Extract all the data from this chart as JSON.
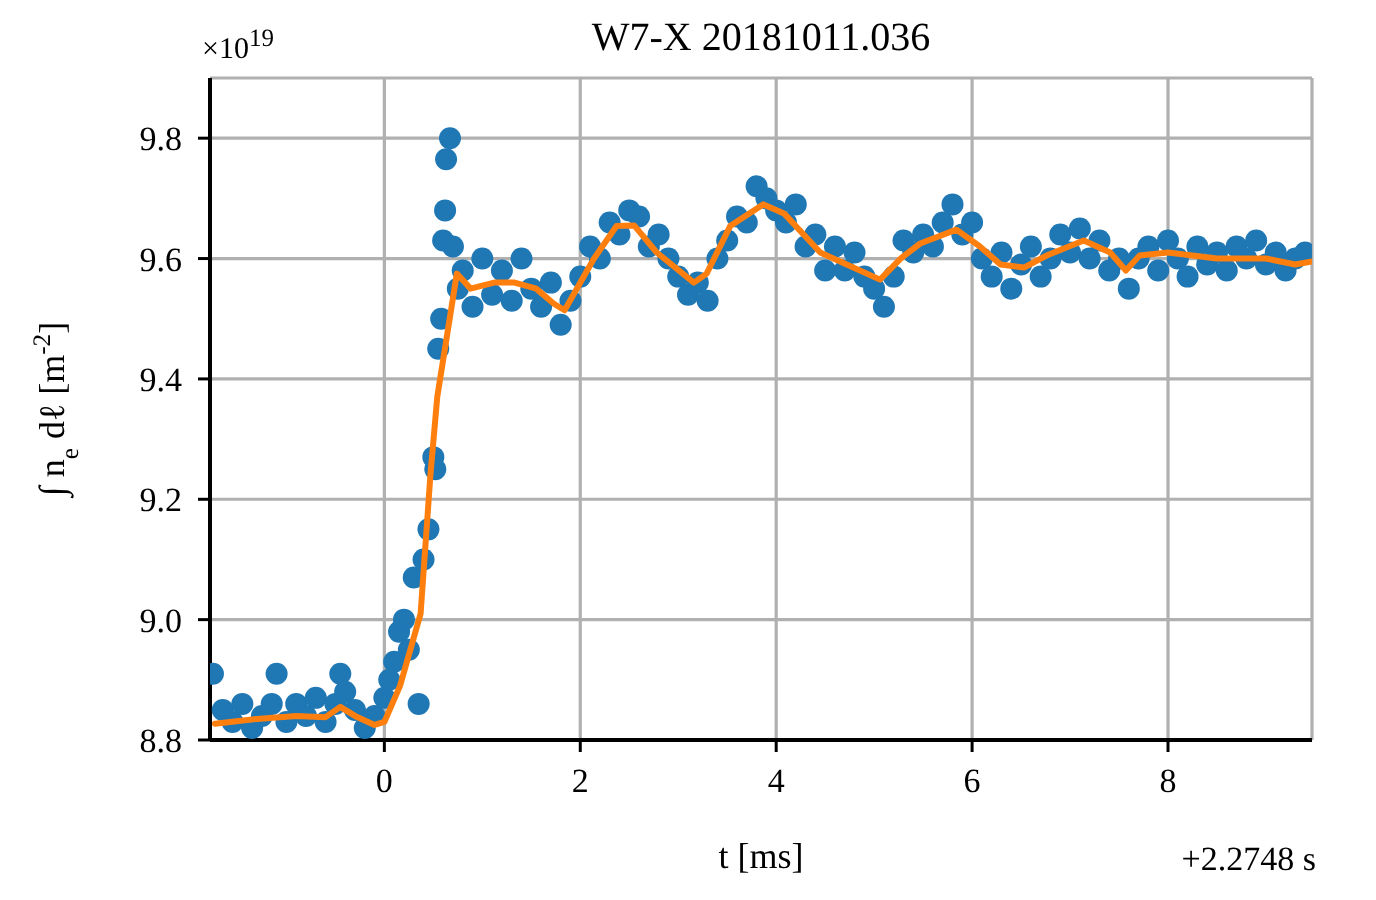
{
  "chart_data": {
    "type": "scatter",
    "title": "W7-X 20181011.036",
    "xlabel": "t [ms]",
    "ylabel": "∫ n$_{e}$ dℓ [m$^{-2}$]",
    "annotations": [
      "×10$^{19}$",
      "+2.2748 s"
    ],
    "xlim": [
      -1.78,
      9.47
    ],
    "xticks": [
      0,
      2,
      4,
      6,
      8
    ],
    "ylim": [
      8.8,
      9.9
    ],
    "yticks": [
      8.8,
      {
        "value": 9,
        "label": "9.0"
      },
      9.2,
      9.4,
      9.6,
      9.8
    ],
    "grid": true,
    "marker": "circle",
    "series": [
      {
        "color": "#1f77b4",
        "x": [
          -1.75,
          -1.65,
          -1.55,
          -1.45,
          -1.35,
          -1.25,
          -1.15,
          -1.1,
          -1.0,
          -0.9,
          -0.8,
          -0.7,
          -0.6,
          -0.5,
          -0.45,
          -0.4,
          -0.3,
          -0.2,
          -0.1,
          0.0,
          0.05,
          0.1,
          0.15,
          0.2,
          0.25,
          0.3,
          0.35,
          0.4,
          0.45,
          0.5,
          0.52,
          0.55,
          0.58,
          0.6,
          0.62,
          0.63,
          0.67,
          0.7,
          0.75,
          0.8,
          0.9,
          1.0,
          1.1,
          1.2,
          1.3,
          1.4,
          1.5,
          1.6,
          1.7,
          1.8,
          1.9,
          2.0,
          2.1,
          2.2,
          2.3,
          2.4,
          2.5,
          2.6,
          2.7,
          2.8,
          2.9,
          3.0,
          3.1,
          3.2,
          3.3,
          3.4,
          3.5,
          3.6,
          3.7,
          3.8,
          3.9,
          4.0,
          4.1,
          4.2,
          4.3,
          4.4,
          4.5,
          4.6,
          4.7,
          4.8,
          4.9,
          5.0,
          5.1,
          5.2,
          5.3,
          5.4,
          5.5,
          5.6,
          5.7,
          5.8,
          5.9,
          6.0,
          6.1,
          6.2,
          6.3,
          6.4,
          6.5,
          6.6,
          6.7,
          6.8,
          6.9,
          7.0,
          7.1,
          7.2,
          7.3,
          7.4,
          7.5,
          7.6,
          7.7,
          7.8,
          7.9,
          8.0,
          8.1,
          8.2,
          8.3,
          8.4,
          8.5,
          8.6,
          8.7,
          8.8,
          8.9,
          9.0,
          9.1,
          9.2,
          9.3,
          9.4
        ],
        "values": [
          8.91,
          8.85,
          8.83,
          8.86,
          8.82,
          8.84,
          8.86,
          8.91,
          8.83,
          8.86,
          8.84,
          8.87,
          8.83,
          8.86,
          8.91,
          8.88,
          8.85,
          8.82,
          8.84,
          8.87,
          8.9,
          8.93,
          8.98,
          9.0,
          8.95,
          9.07,
          8.86,
          9.1,
          9.15,
          9.27,
          9.25,
          9.45,
          9.5,
          9.63,
          9.68,
          9.765,
          9.8,
          9.62,
          9.55,
          9.58,
          9.52,
          9.6,
          9.54,
          9.58,
          9.53,
          9.6,
          9.55,
          9.52,
          9.56,
          9.49,
          9.53,
          9.57,
          9.62,
          9.6,
          9.66,
          9.64,
          9.68,
          9.67,
          9.62,
          9.64,
          9.6,
          9.57,
          9.54,
          9.56,
          9.53,
          9.6,
          9.63,
          9.67,
          9.66,
          9.72,
          9.7,
          9.68,
          9.66,
          9.69,
          9.62,
          9.64,
          9.58,
          9.62,
          9.58,
          9.61,
          9.57,
          9.55,
          9.52,
          9.57,
          9.63,
          9.61,
          9.64,
          9.62,
          9.66,
          9.69,
          9.64,
          9.66,
          9.6,
          9.57,
          9.61,
          9.55,
          9.59,
          9.62,
          9.57,
          9.6,
          9.64,
          9.61,
          9.65,
          9.6,
          9.63,
          9.58,
          9.6,
          9.55,
          9.6,
          9.62,
          9.58,
          9.63,
          9.6,
          9.57,
          9.62,
          9.59,
          9.61,
          9.58,
          9.62,
          9.6,
          9.63,
          9.59,
          9.61,
          9.58,
          9.6,
          9.61
        ]
      },
      {
        "type": "line",
        "color": "#ff7f0e",
        "marker": "none",
        "x": [
          -1.73,
          -1.3,
          -0.9,
          -0.6,
          -0.45,
          -0.3,
          -0.1,
          0.0,
          0.16,
          0.37,
          0.47,
          0.54,
          0.74,
          0.88,
          1.12,
          1.33,
          1.55,
          1.73,
          1.84,
          2.14,
          2.37,
          2.55,
          2.78,
          3.16,
          3.29,
          3.53,
          3.87,
          4.08,
          4.45,
          4.72,
          5.06,
          5.27,
          5.47,
          5.84,
          6.08,
          6.29,
          6.53,
          6.76,
          7.14,
          7.41,
          7.57,
          7.71,
          8.0,
          8.5,
          9.0,
          9.3,
          9.47
        ],
        "values": [
          8.827,
          8.835,
          8.84,
          8.838,
          8.855,
          8.84,
          8.825,
          8.83,
          8.89,
          9.01,
          9.24,
          9.37,
          9.575,
          9.55,
          9.56,
          9.56,
          9.55,
          9.525,
          9.514,
          9.6,
          9.654,
          9.655,
          9.61,
          9.56,
          9.575,
          9.654,
          9.69,
          9.675,
          9.61,
          9.59,
          9.565,
          9.6,
          9.625,
          9.648,
          9.62,
          9.59,
          9.585,
          9.605,
          9.63,
          9.61,
          9.58,
          9.605,
          9.61,
          9.6,
          9.6,
          9.59,
          9.595
        ]
      }
    ]
  }
}
